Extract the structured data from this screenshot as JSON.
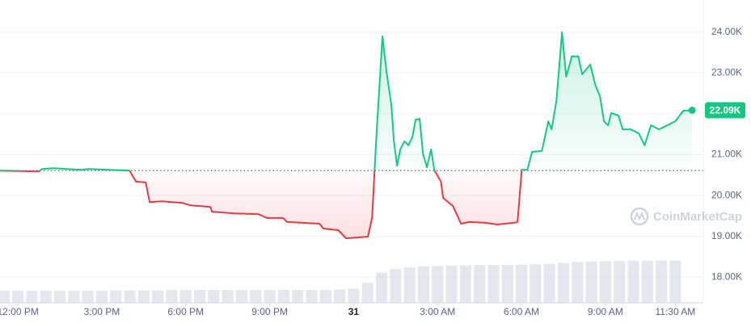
{
  "chart_data": {
    "type": "line",
    "x": [
      -0.64,
      0.75,
      0.87,
      1.27,
      2.25,
      2.54,
      3.99,
      4.22,
      4.57,
      4.71,
      5.14,
      5.87,
      6.16,
      6.88,
      6.94,
      7.75,
      8.61,
      8.9,
      9.48,
      9.62,
      10.78,
      10.92,
      11.45,
      11.73,
      12.51,
      12.66,
      12.75,
      12.83,
      13.03,
      13.18,
      13.35,
      13.44,
      13.55,
      13.67,
      13.82,
      13.96,
      14.1,
      14.22,
      14.36,
      14.48,
      14.62,
      14.77,
      14.88,
      15.12,
      15.2,
      15.55,
      15.84,
      16.13,
      16.71,
      17.14,
      17.72,
      17.86,
      18.01,
      18.21,
      18.38,
      18.73,
      18.96,
      19.08,
      19.25,
      19.45,
      19.6,
      19.8,
      20.03,
      20.17,
      20.46,
      20.64,
      20.81,
      20.95,
      21.1,
      21.21,
      21.47,
      21.62,
      21.91,
      22.2,
      22.4,
      22.63,
      22.92,
      23.21,
      23.5,
      23.79,
      24.1
    ],
    "values": [
      20.61,
      20.59,
      20.65,
      20.67,
      20.63,
      20.65,
      20.61,
      20.34,
      20.32,
      19.84,
      19.86,
      19.82,
      19.76,
      19.72,
      19.6,
      19.56,
      19.54,
      19.45,
      19.45,
      19.35,
      19.31,
      19.19,
      19.15,
      18.95,
      18.99,
      19.45,
      20.63,
      21.62,
      23.9,
      23.01,
      22.22,
      21.33,
      20.73,
      21.13,
      21.33,
      21.23,
      21.43,
      21.86,
      21.88,
      21.03,
      20.69,
      21.13,
      20.63,
      20.34,
      19.94,
      19.74,
      19.31,
      19.35,
      19.33,
      19.29,
      19.33,
      19.35,
      20.63,
      20.63,
      21.07,
      21.09,
      21.82,
      21.62,
      22.32,
      24.0,
      22.91,
      23.41,
      23.41,
      22.97,
      23.21,
      22.71,
      22.42,
      21.82,
      21.72,
      22.02,
      21.96,
      21.62,
      21.62,
      21.52,
      21.23,
      21.72,
      21.62,
      21.72,
      21.82,
      22.08,
      22.09
    ],
    "baseline": 20.61,
    "color_up": "#16c784",
    "color_down": "#ea3943",
    "current_price": {
      "value": 22.09,
      "label": "22.09K"
    },
    "xlim": [
      -0.64,
      24.5
    ],
    "xticks": [
      {
        "value": 0,
        "label": "12:00 PM"
      },
      {
        "value": 3,
        "label": "3:00 PM"
      },
      {
        "value": 6,
        "label": "6:00 PM"
      },
      {
        "value": 9,
        "label": "9:00 PM"
      },
      {
        "value": 12,
        "label": "31"
      },
      {
        "value": 15,
        "label": "3:00 AM"
      },
      {
        "value": 18,
        "label": "6:00 AM"
      },
      {
        "value": 21,
        "label": "9:00 AM"
      },
      {
        "value": 23.5,
        "label": "11:30 AM"
      }
    ],
    "ylim": [
      17.37,
      24.79
    ],
    "yticks": [
      {
        "value": 18,
        "label": "18.00K"
      },
      {
        "value": 19,
        "label": "19.00K"
      },
      {
        "value": 20,
        "label": "20.00K"
      },
      {
        "value": 21,
        "label": "21.00K"
      },
      {
        "value": 22,
        "label": "22.00K"
      },
      {
        "value": 23,
        "label": "23.00K"
      },
      {
        "value": 24,
        "label": "24.00K"
      }
    ],
    "grid": true,
    "volume": {
      "color": "#d9dde5",
      "x": [
        -0.5,
        0,
        0.5,
        1,
        1.5,
        2,
        2.5,
        3,
        3.5,
        4,
        4.5,
        5,
        5.5,
        6,
        6.5,
        7,
        7.5,
        8,
        8.5,
        9,
        9.5,
        10,
        10.5,
        11,
        11.5,
        12,
        12.5,
        13,
        13.5,
        14,
        14.5,
        15,
        15.5,
        16,
        16.5,
        17,
        17.5,
        18,
        18.5,
        19,
        19.5,
        20,
        20.5,
        21,
        21.5,
        22,
        22.5,
        23,
        23.5
      ],
      "values": [
        27,
        27,
        27,
        27,
        27,
        27,
        27,
        27,
        28,
        28,
        28,
        28,
        29,
        29,
        29,
        29,
        29,
        29,
        29,
        29,
        29,
        29,
        29,
        29,
        30,
        32,
        45,
        68,
        76,
        80,
        82,
        83,
        84,
        84,
        85,
        85,
        85,
        86,
        87,
        88,
        90,
        92,
        93,
        94,
        94,
        95,
        95,
        95,
        95
      ]
    },
    "watermark": "CoinMarketCap"
  }
}
